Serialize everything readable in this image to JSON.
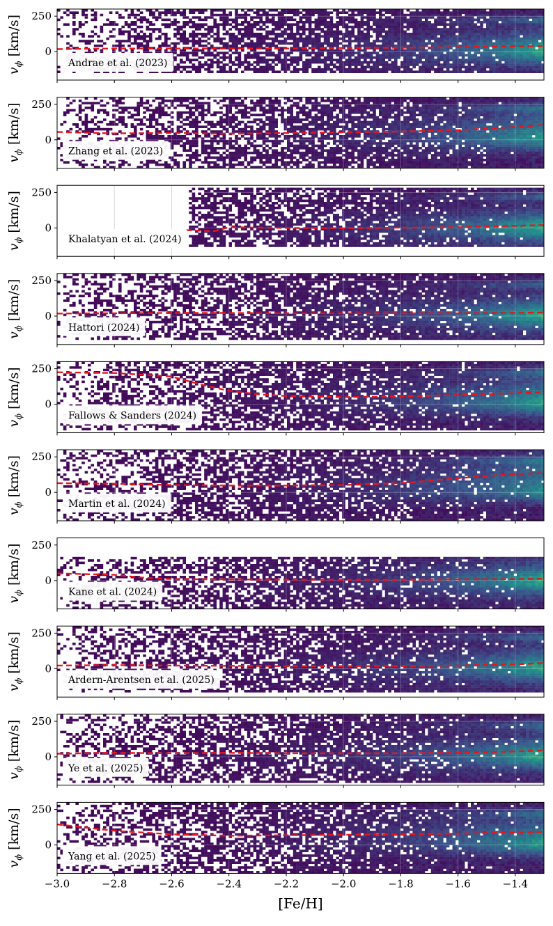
{
  "chart_data": {
    "type": "heatmap",
    "xlabel": "[Fe/H]",
    "ylabel": "v_ϕ [km/s]",
    "ylabel_main": "v",
    "ylabel_sub": "ϕ",
    "ylabel_units": " [km/s]",
    "xlim": [
      -3.0,
      -1.3
    ],
    "ylim": [
      -200,
      300
    ],
    "xticks": [
      -3.0,
      -2.8,
      -2.6,
      -2.4,
      -2.2,
      -2.0,
      -1.8,
      -1.6,
      -1.4
    ],
    "xtick_labels": [
      "−3.0",
      "−2.8",
      "−2.6",
      "−2.4",
      "−2.2",
      "−2.0",
      "−1.8",
      "−1.6",
      "−1.4"
    ],
    "yticks": [
      0,
      250
    ],
    "ytick_labels": [
      "0",
      "250"
    ],
    "grid": true,
    "colormap": [
      "#440154",
      "#3b528b",
      "#21918c",
      "#5ec962",
      "#fde725"
    ],
    "line_color": "#e8151b",
    "panels": [
      {
        "label": "Andrae et al. (2023)",
        "x": [
          -3.0,
          -2.8,
          -2.6,
          -2.4,
          -2.2,
          -2.0,
          -1.8,
          -1.6,
          -1.4,
          -1.3
        ],
        "median": [
          18,
          22,
          22,
          22,
          22,
          26,
          28,
          32,
          38,
          40
        ],
        "coverage": {
          "xmin": -3.0,
          "vmin": -150,
          "vmax": 300
        }
      },
      {
        "label": "Zhang et al. (2023)",
        "x": [
          -3.0,
          -2.8,
          -2.6,
          -2.4,
          -2.2,
          -2.0,
          -1.8,
          -1.6,
          -1.4,
          -1.3
        ],
        "median": [
          55,
          45,
          48,
          42,
          48,
          52,
          58,
          68,
          90,
          105
        ],
        "coverage": {
          "xmin": -3.0,
          "vmin": -200,
          "vmax": 300
        }
      },
      {
        "label": "Khalatyan et al. (2024)",
        "x": [
          -2.55,
          -2.5,
          -2.45,
          -2.4,
          -2.2,
          -2.0,
          -1.8,
          -1.6,
          -1.4,
          -1.3
        ],
        "median": [
          -15,
          -20,
          -22,
          5,
          0,
          -2,
          2,
          5,
          15,
          20
        ],
        "coverage": {
          "xmin": -2.55,
          "vmin": -130,
          "vmax": 290
        }
      },
      {
        "label": "Hattori (2024)",
        "x": [
          -3.0,
          -2.8,
          -2.6,
          -2.4,
          -2.2,
          -2.0,
          -1.8,
          -1.6,
          -1.4,
          -1.3
        ],
        "median": [
          18,
          20,
          22,
          22,
          20,
          20,
          20,
          20,
          22,
          25
        ],
        "coverage": {
          "xmin": -3.0,
          "vmin": -160,
          "vmax": 300
        }
      },
      {
        "label": "Fallows & Sanders (2024)",
        "x": [
          -3.0,
          -2.8,
          -2.6,
          -2.5,
          -2.4,
          -2.3,
          -2.2,
          -2.0,
          -1.8,
          -1.6,
          -1.4,
          -1.3
        ],
        "median": [
          225,
          220,
          195,
          140,
          95,
          70,
          58,
          50,
          55,
          65,
          78,
          85
        ],
        "coverage": {
          "xmin": -3.0,
          "vmin": -180,
          "vmax": 300
        }
      },
      {
        "label": "Martin et al. (2024)",
        "x": [
          -3.0,
          -2.8,
          -2.6,
          -2.4,
          -2.2,
          -2.0,
          -1.8,
          -1.6,
          -1.4,
          -1.3
        ],
        "median": [
          65,
          60,
          52,
          48,
          48,
          52,
          65,
          100,
          130,
          135
        ],
        "coverage": {
          "xmin": -3.0,
          "vmin": -200,
          "vmax": 300
        }
      },
      {
        "label": "Kane et al. (2024)",
        "x": [
          -3.0,
          -2.8,
          -2.7,
          -2.6,
          -2.4,
          -2.2,
          -2.0,
          -1.8,
          -1.6,
          -1.4,
          -1.3
        ],
        "median": [
          50,
          40,
          20,
          10,
          8,
          6,
          5,
          5,
          8,
          10,
          12
        ],
        "coverage": {
          "xmin": -3.0,
          "vmin": -200,
          "vmax": 170
        }
      },
      {
        "label": "Ardern-Arentsen et al. (2025)",
        "x": [
          -3.0,
          -2.8,
          -2.6,
          -2.4,
          -2.2,
          -2.0,
          -1.8,
          -1.6,
          -1.4,
          -1.3
        ],
        "median": [
          22,
          25,
          22,
          20,
          18,
          18,
          18,
          22,
          30,
          40
        ],
        "coverage": {
          "xmin": -3.0,
          "vmin": -150,
          "vmax": 300
        }
      },
      {
        "label": "Ye et al. (2025)",
        "x": [
          -3.0,
          -2.8,
          -2.6,
          -2.4,
          -2.2,
          -2.0,
          -1.8,
          -1.6,
          -1.4,
          -1.3
        ],
        "median": [
          22,
          28,
          25,
          28,
          25,
          25,
          25,
          28,
          38,
          45
        ],
        "coverage": {
          "xmin": -3.0,
          "vmin": -180,
          "vmax": 300
        }
      },
      {
        "label": "Yang et al. (2025)",
        "x": [
          -3.0,
          -2.8,
          -2.6,
          -2.4,
          -2.2,
          -2.0,
          -1.8,
          -1.6,
          -1.4,
          -1.3
        ],
        "median": [
          145,
          100,
          75,
          65,
          68,
          72,
          75,
          80,
          88,
          92
        ],
        "coverage": {
          "xmin": -3.0,
          "vmin": -200,
          "vmax": 300
        }
      }
    ]
  }
}
